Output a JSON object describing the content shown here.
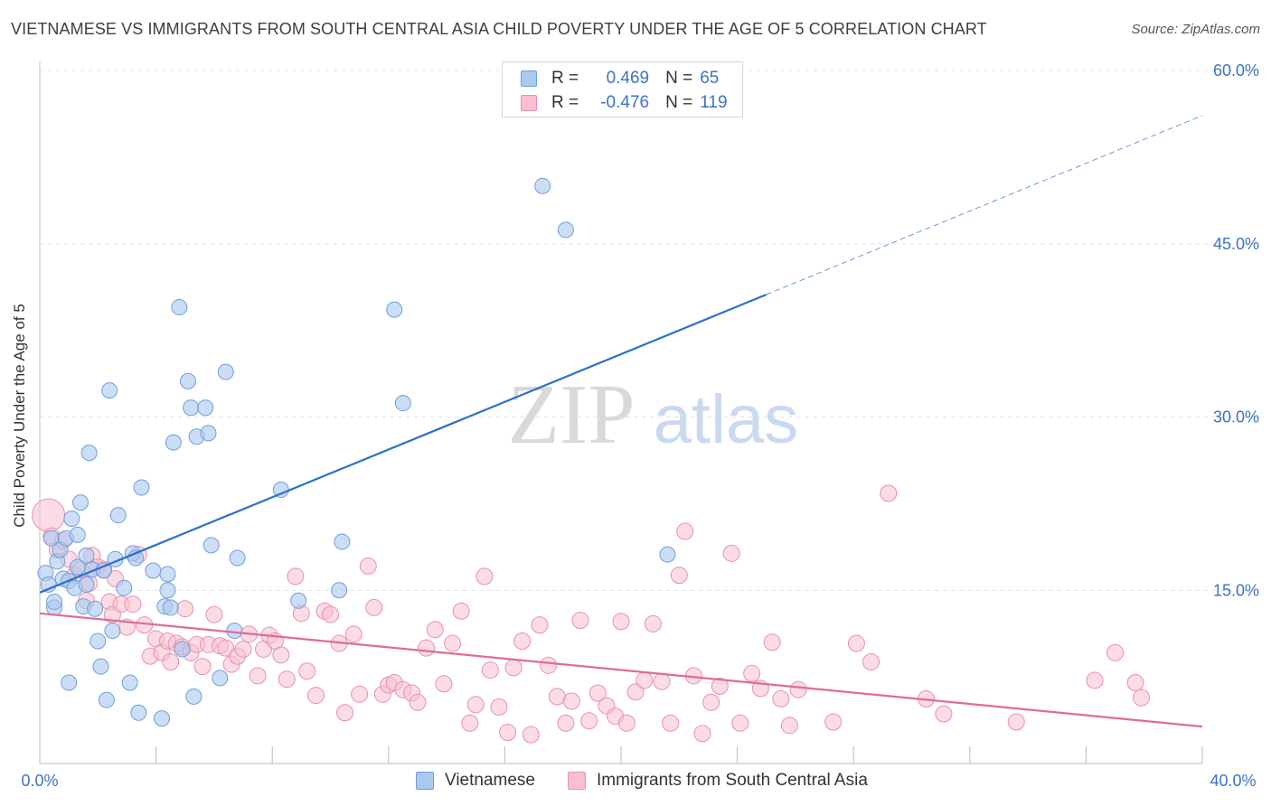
{
  "title": "VIETNAMESE VS IMMIGRANTS FROM SOUTH CENTRAL ASIA CHILD POVERTY UNDER THE AGE OF 5 CORRELATION CHART",
  "source": "Source: ZipAtlas.com",
  "watermark": {
    "zip": "ZIP",
    "atlas": "atlas"
  },
  "legend_top": [
    {
      "r_label": "R =",
      "r_value": "0.469",
      "n_label": "N =",
      "n_value": "65"
    },
    {
      "r_label": "R =",
      "r_value": "-0.476",
      "n_label": "N =",
      "n_value": "119"
    }
  ],
  "colors": {
    "blue_fill": "#aac8f0",
    "blue_stroke": "#6f9fdc",
    "blue_line": "#2a72c9",
    "pink_fill": "#f7bfd0",
    "pink_stroke": "#ea8fae",
    "pink_line": "#e06a98",
    "axis_text": "#3d72c8",
    "grid": "#e3e3e3"
  },
  "chart_data": {
    "type": "scatter",
    "ylabel": "Child Poverty Under the Age of 5",
    "xlim": [
      0,
      40
    ],
    "ylim": [
      0,
      60
    ],
    "x_ticks": [
      "0.0%",
      "40.0%"
    ],
    "y_ticks": [
      {
        "value": 15,
        "label": "15.0%"
      },
      {
        "value": 30,
        "label": "30.0%"
      },
      {
        "value": 45,
        "label": "45.0%"
      },
      {
        "value": 60,
        "label": "60.0%"
      }
    ],
    "series": [
      {
        "name": "Vietnamese",
        "trend": {
          "x0": 0,
          "y0": 14.8,
          "x1": 25,
          "y1": 40.6,
          "dash_to_x": 40,
          "dash_to_y": 56.1
        },
        "points": [
          [
            0.2,
            16.5
          ],
          [
            0.3,
            15.5
          ],
          [
            0.4,
            19.5
          ],
          [
            0.5,
            13.5
          ],
          [
            0.6,
            17.5
          ],
          [
            0.7,
            18.5
          ],
          [
            0.8,
            16.0
          ],
          [
            0.9,
            19.5
          ],
          [
            1.0,
            15.8
          ],
          [
            1.1,
            21.2
          ],
          [
            1.2,
            15.2
          ],
          [
            1.3,
            19.8
          ],
          [
            1.4,
            22.6
          ],
          [
            1.5,
            13.6
          ],
          [
            1.6,
            18.0
          ],
          [
            1.7,
            26.9
          ],
          [
            1.8,
            16.8
          ],
          [
            1.9,
            13.4
          ],
          [
            2.0,
            10.6
          ],
          [
            2.1,
            8.4
          ],
          [
            2.2,
            16.7
          ],
          [
            2.3,
            5.5
          ],
          [
            2.4,
            32.3
          ],
          [
            2.6,
            17.7
          ],
          [
            2.7,
            21.5
          ],
          [
            2.9,
            15.2
          ],
          [
            3.1,
            7.0
          ],
          [
            3.2,
            18.2
          ],
          [
            3.3,
            17.8
          ],
          [
            3.4,
            4.4
          ],
          [
            3.5,
            23.9
          ],
          [
            3.9,
            16.7
          ],
          [
            4.2,
            3.9
          ],
          [
            4.3,
            13.6
          ],
          [
            4.4,
            16.4
          ],
          [
            4.4,
            15.0
          ],
          [
            4.5,
            13.5
          ],
          [
            4.6,
            27.8
          ],
          [
            4.8,
            39.5
          ],
          [
            4.9,
            9.9
          ],
          [
            5.1,
            33.1
          ],
          [
            5.2,
            30.8
          ],
          [
            5.3,
            5.8
          ],
          [
            5.4,
            28.3
          ],
          [
            5.7,
            30.8
          ],
          [
            5.8,
            28.6
          ],
          [
            5.9,
            18.9
          ],
          [
            6.2,
            7.4
          ],
          [
            6.4,
            33.9
          ],
          [
            6.7,
            11.5
          ],
          [
            6.8,
            17.8
          ],
          [
            0.5,
            14.0
          ],
          [
            1.0,
            7.0
          ],
          [
            1.6,
            15.5
          ],
          [
            2.5,
            11.5
          ],
          [
            8.3,
            23.7
          ],
          [
            8.9,
            14.1
          ],
          [
            10.3,
            15.0
          ],
          [
            10.4,
            19.2
          ],
          [
            12.2,
            39.3
          ],
          [
            12.5,
            31.2
          ],
          [
            17.3,
            50.0
          ],
          [
            18.1,
            46.2
          ],
          [
            21.6,
            18.1
          ],
          [
            1.3,
            17.0
          ]
        ]
      },
      {
        "name": "Immigrants from South Central Asia",
        "trend": {
          "x0": 0,
          "y0": 13.0,
          "x1": 40,
          "y1": 3.2
        },
        "points": [
          [
            0.3,
            21.5
          ],
          [
            0.4,
            19.7
          ],
          [
            0.6,
            18.5
          ],
          [
            0.8,
            19.3
          ],
          [
            1.0,
            17.7
          ],
          [
            1.2,
            16.3
          ],
          [
            1.4,
            16.8
          ],
          [
            1.6,
            14.1
          ],
          [
            1.7,
            15.6
          ],
          [
            1.8,
            18.0
          ],
          [
            2.0,
            17.0
          ],
          [
            2.2,
            16.8
          ],
          [
            2.4,
            14.0
          ],
          [
            2.5,
            12.9
          ],
          [
            2.6,
            16.0
          ],
          [
            2.8,
            13.8
          ],
          [
            3.0,
            11.8
          ],
          [
            3.2,
            13.8
          ],
          [
            3.4,
            18.1
          ],
          [
            3.6,
            12.0
          ],
          [
            3.8,
            9.3
          ],
          [
            4.0,
            10.8
          ],
          [
            4.2,
            9.6
          ],
          [
            4.4,
            10.6
          ],
          [
            4.5,
            8.8
          ],
          [
            4.7,
            10.4
          ],
          [
            4.9,
            10.1
          ],
          [
            5.0,
            13.4
          ],
          [
            5.2,
            9.6
          ],
          [
            5.4,
            10.3
          ],
          [
            5.6,
            8.4
          ],
          [
            5.8,
            10.3
          ],
          [
            6.0,
            12.9
          ],
          [
            6.2,
            10.2
          ],
          [
            6.4,
            10.0
          ],
          [
            6.6,
            8.6
          ],
          [
            6.8,
            9.3
          ],
          [
            7.0,
            9.9
          ],
          [
            7.2,
            11.2
          ],
          [
            7.5,
            7.6
          ],
          [
            7.7,
            9.9
          ],
          [
            7.9,
            11.1
          ],
          [
            8.1,
            10.6
          ],
          [
            8.3,
            9.4
          ],
          [
            8.5,
            7.3
          ],
          [
            8.8,
            16.2
          ],
          [
            9.0,
            13.0
          ],
          [
            9.2,
            8.0
          ],
          [
            9.5,
            5.9
          ],
          [
            9.8,
            13.2
          ],
          [
            10.0,
            12.9
          ],
          [
            10.3,
            10.4
          ],
          [
            10.5,
            4.4
          ],
          [
            10.8,
            11.2
          ],
          [
            11.0,
            6.0
          ],
          [
            11.3,
            17.1
          ],
          [
            11.5,
            13.5
          ],
          [
            11.8,
            6.0
          ],
          [
            12.0,
            6.8
          ],
          [
            12.2,
            7.0
          ],
          [
            12.5,
            6.4
          ],
          [
            12.8,
            6.1
          ],
          [
            13.0,
            5.3
          ],
          [
            13.3,
            10.0
          ],
          [
            13.6,
            11.6
          ],
          [
            13.9,
            6.9
          ],
          [
            14.2,
            10.4
          ],
          [
            14.5,
            13.2
          ],
          [
            14.8,
            3.5
          ],
          [
            15.0,
            5.1
          ],
          [
            15.3,
            16.2
          ],
          [
            15.5,
            8.1
          ],
          [
            15.8,
            4.9
          ],
          [
            16.1,
            2.7
          ],
          [
            16.3,
            8.3
          ],
          [
            16.6,
            10.6
          ],
          [
            16.9,
            2.5
          ],
          [
            17.2,
            12.0
          ],
          [
            17.5,
            8.5
          ],
          [
            17.8,
            5.8
          ],
          [
            18.1,
            3.5
          ],
          [
            18.3,
            5.4
          ],
          [
            18.6,
            12.4
          ],
          [
            18.9,
            3.7
          ],
          [
            19.2,
            6.1
          ],
          [
            19.5,
            5.0
          ],
          [
            19.8,
            4.1
          ],
          [
            20.0,
            12.3
          ],
          [
            20.2,
            3.5
          ],
          [
            20.5,
            6.2
          ],
          [
            20.8,
            7.2
          ],
          [
            21.1,
            12.1
          ],
          [
            21.4,
            7.1
          ],
          [
            21.7,
            3.5
          ],
          [
            22.0,
            16.3
          ],
          [
            22.2,
            20.1
          ],
          [
            22.5,
            7.6
          ],
          [
            22.8,
            2.6
          ],
          [
            23.1,
            5.3
          ],
          [
            23.4,
            6.7
          ],
          [
            23.8,
            18.2
          ],
          [
            24.1,
            3.5
          ],
          [
            24.5,
            7.8
          ],
          [
            24.8,
            6.5
          ],
          [
            25.2,
            10.5
          ],
          [
            25.5,
            5.6
          ],
          [
            25.8,
            3.3
          ],
          [
            26.1,
            6.4
          ],
          [
            27.3,
            3.6
          ],
          [
            28.1,
            10.4
          ],
          [
            28.6,
            8.8
          ],
          [
            29.2,
            23.4
          ],
          [
            30.5,
            5.6
          ],
          [
            31.1,
            4.3
          ],
          [
            33.6,
            3.6
          ],
          [
            36.3,
            7.2
          ],
          [
            37.0,
            9.6
          ],
          [
            37.7,
            7.0
          ],
          [
            37.9,
            5.7
          ]
        ]
      }
    ]
  },
  "bottom_legend": [
    "Vietnamese",
    "Immigrants from South Central Asia"
  ]
}
